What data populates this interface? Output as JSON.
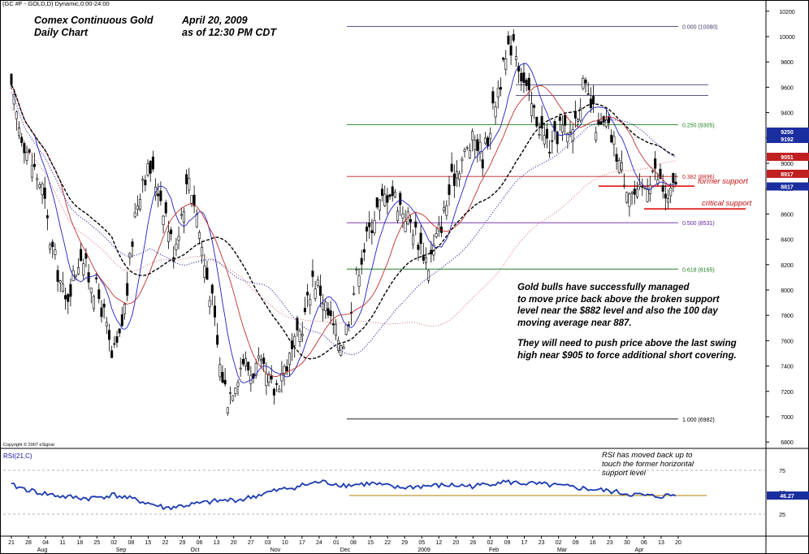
{
  "header": {
    "symbol_line": "(GC #F - GOLD,D) Dynamic,0:00-24:00",
    "title_left_1": "Comex Continuous Gold",
    "title_left_2": "Daily Chart",
    "title_right_1": "April 20, 2009",
    "title_right_2": "as of  12:30 PM CDT"
  },
  "copyright": "Copyright © 2007 eSignal",
  "annotations": {
    "main_note": [
      "Gold bulls have successfully managed",
      "to move price back above the broken support",
      "level near the $882 level and also the 100 day",
      "moving average near 887.",
      "",
      "They will need to push price above the last swing",
      "high near $905 to force additional short covering."
    ],
    "rsi_note": [
      "RSI has moved back up to",
      "touch the former horizontal",
      "support level"
    ],
    "former_support": "former support",
    "critical_support": "critical support"
  },
  "colors": {
    "price": "#000000",
    "ma_blue": "#2020c0",
    "ma_red": "#c03030",
    "ma_black_dashed": "#000000",
    "ma_dotted_red": "#d06060",
    "ma_dotted_blue": "#2020a0",
    "fib_top": "#404070",
    "fib_250": "#208020",
    "fib_382": "#c02020",
    "fib_500": "#6020a0",
    "fib_618": "#208020",
    "fib_100": "#000000",
    "support_line": "#e00000",
    "rsi_line": "#1a3ab0",
    "rsi_level": "#b08000",
    "tag_blue_bg": "#1a2ea0",
    "tag_red_bg": "#c02020"
  },
  "chart_data": [
    {
      "type": "candlestick",
      "title": "",
      "y_axis_ticks": [
        "10200",
        "10000",
        "9800",
        "9600",
        "9400",
        "9200",
        "9000",
        "8800",
        "8600",
        "8400",
        "8200",
        "8000",
        "7800",
        "7600",
        "7400",
        "7200",
        "7000",
        "6800"
      ],
      "ylim": [
        675,
        1025
      ],
      "x_day_labels": [
        "21",
        "28",
        "04",
        "11",
        "18",
        "25",
        "02",
        "08",
        "15",
        "22",
        "29",
        "06",
        "13",
        "20",
        "27",
        "03",
        "10",
        "17",
        "24",
        "01",
        "08",
        "15",
        "22",
        "29",
        "05",
        "12",
        "20",
        "26",
        "02",
        "09",
        "17",
        "23",
        "02",
        "09",
        "16",
        "23",
        "30",
        "06",
        "13",
        "20"
      ],
      "x_month_labels": [
        "Aug",
        "Sep",
        "Oct",
        "Nov",
        "Dec",
        "2009",
        "Feb",
        "Mar",
        "Apr"
      ],
      "fibonacci_levels": [
        {
          "label": "0.000 (10080)",
          "value": 1008.0
        },
        {
          "label": "0.250 (9305)",
          "value": 930.5
        },
        {
          "label": "0.382 (8896)",
          "value": 889.6
        },
        {
          "label": "0.500 (8531)",
          "value": 853.1
        },
        {
          "label": "0.618 (8165)",
          "value": 816.5
        },
        {
          "label": "1.000 (6982)",
          "value": 698.2
        }
      ],
      "horizontal_lines": [
        {
          "value": 962,
          "color": "#404070"
        },
        {
          "value": 953.5,
          "color": "#404070"
        }
      ],
      "support_lines": [
        {
          "label": "former support",
          "value": 882
        },
        {
          "label": "critical support",
          "value": 864
        }
      ],
      "price_tags": [
        {
          "label": "9250",
          "value": 925,
          "color": "blue"
        },
        {
          "label": "9192",
          "value": 919.2,
          "color": "blue"
        },
        {
          "label": "9051",
          "value": 905.1,
          "color": "red"
        },
        {
          "label": "8917",
          "value": 891.7,
          "color": "red"
        },
        {
          "label": "8817",
          "value": 881.7,
          "color": "blue"
        }
      ],
      "close_path": [
        {
          "d": 0,
          "v": 955
        },
        {
          "d": 3,
          "v": 930
        },
        {
          "d": 6,
          "v": 910
        },
        {
          "d": 9,
          "v": 895
        },
        {
          "d": 12,
          "v": 880
        },
        {
          "d": 15,
          "v": 840
        },
        {
          "d": 18,
          "v": 815
        },
        {
          "d": 21,
          "v": 790
        },
        {
          "d": 24,
          "v": 810
        },
        {
          "d": 27,
          "v": 830
        },
        {
          "d": 30,
          "v": 810
        },
        {
          "d": 33,
          "v": 800
        },
        {
          "d": 36,
          "v": 780
        },
        {
          "d": 39,
          "v": 745
        },
        {
          "d": 42,
          "v": 760
        },
        {
          "d": 45,
          "v": 800
        },
        {
          "d": 48,
          "v": 860
        },
        {
          "d": 51,
          "v": 890
        },
        {
          "d": 54,
          "v": 895
        },
        {
          "d": 57,
          "v": 880
        },
        {
          "d": 60,
          "v": 860
        },
        {
          "d": 63,
          "v": 830
        },
        {
          "d": 66,
          "v": 860
        },
        {
          "d": 69,
          "v": 890
        },
        {
          "d": 72,
          "v": 860
        },
        {
          "d": 75,
          "v": 820
        },
        {
          "d": 78,
          "v": 790
        },
        {
          "d": 81,
          "v": 740
        },
        {
          "d": 84,
          "v": 715
        },
        {
          "d": 87,
          "v": 730
        },
        {
          "d": 90,
          "v": 745
        },
        {
          "d": 93,
          "v": 735
        },
        {
          "d": 96,
          "v": 740
        },
        {
          "d": 99,
          "v": 730
        },
        {
          "d": 102,
          "v": 720
        },
        {
          "d": 105,
          "v": 735
        },
        {
          "d": 108,
          "v": 745
        },
        {
          "d": 111,
          "v": 760
        },
        {
          "d": 114,
          "v": 780
        },
        {
          "d": 117,
          "v": 810
        },
        {
          "d": 120,
          "v": 800
        },
        {
          "d": 123,
          "v": 780
        },
        {
          "d": 126,
          "v": 765
        },
        {
          "d": 129,
          "v": 760
        },
        {
          "d": 132,
          "v": 790
        },
        {
          "d": 135,
          "v": 820
        },
        {
          "d": 138,
          "v": 840
        },
        {
          "d": 141,
          "v": 860
        },
        {
          "d": 144,
          "v": 870
        },
        {
          "d": 147,
          "v": 880
        },
        {
          "d": 150,
          "v": 870
        },
        {
          "d": 153,
          "v": 860
        },
        {
          "d": 156,
          "v": 850
        },
        {
          "d": 159,
          "v": 835
        },
        {
          "d": 162,
          "v": 820
        },
        {
          "d": 165,
          "v": 840
        },
        {
          "d": 168,
          "v": 860
        },
        {
          "d": 171,
          "v": 885
        },
        {
          "d": 174,
          "v": 900
        },
        {
          "d": 177,
          "v": 910
        },
        {
          "d": 180,
          "v": 920
        },
        {
          "d": 183,
          "v": 905
        },
        {
          "d": 186,
          "v": 930
        },
        {
          "d": 189,
          "v": 960
        },
        {
          "d": 192,
          "v": 980
        },
        {
          "d": 195,
          "v": 1000
        },
        {
          "d": 198,
          "v": 970
        },
        {
          "d": 201,
          "v": 950
        },
        {
          "d": 204,
          "v": 935
        },
        {
          "d": 207,
          "v": 920
        },
        {
          "d": 210,
          "v": 910
        },
        {
          "d": 213,
          "v": 930
        },
        {
          "d": 216,
          "v": 920
        },
        {
          "d": 219,
          "v": 935
        },
        {
          "d": 222,
          "v": 960
        },
        {
          "d": 225,
          "v": 945
        },
        {
          "d": 228,
          "v": 925
        },
        {
          "d": 231,
          "v": 930
        },
        {
          "d": 234,
          "v": 915
        },
        {
          "d": 237,
          "v": 895
        },
        {
          "d": 240,
          "v": 880
        },
        {
          "d": 243,
          "v": 872
        },
        {
          "d": 246,
          "v": 882
        },
        {
          "d": 249,
          "v": 895
        },
        {
          "d": 252,
          "v": 885
        },
        {
          "d": 255,
          "v": 868
        },
        {
          "d": 258,
          "v": 887
        }
      ],
      "rsi": {
        "label": "RSI(21,C)",
        "levels": [
          25,
          50,
          75
        ],
        "ylim": [
          0,
          100
        ],
        "reference_level": 46.27,
        "last_value_label": "46.27",
        "values": [
          {
            "d": 0,
            "v": 58
          },
          {
            "d": 10,
            "v": 50
          },
          {
            "d": 20,
            "v": 45
          },
          {
            "d": 30,
            "v": 43
          },
          {
            "d": 40,
            "v": 47
          },
          {
            "d": 50,
            "v": 40
          },
          {
            "d": 60,
            "v": 32
          },
          {
            "d": 70,
            "v": 36
          },
          {
            "d": 80,
            "v": 40
          },
          {
            "d": 90,
            "v": 42
          },
          {
            "d": 100,
            "v": 50
          },
          {
            "d": 110,
            "v": 56
          },
          {
            "d": 120,
            "v": 62
          },
          {
            "d": 130,
            "v": 58
          },
          {
            "d": 140,
            "v": 60
          },
          {
            "d": 150,
            "v": 55
          },
          {
            "d": 160,
            "v": 57
          },
          {
            "d": 170,
            "v": 58
          },
          {
            "d": 180,
            "v": 57
          },
          {
            "d": 190,
            "v": 62
          },
          {
            "d": 200,
            "v": 60
          },
          {
            "d": 210,
            "v": 58
          },
          {
            "d": 220,
            "v": 55
          },
          {
            "d": 230,
            "v": 52
          },
          {
            "d": 240,
            "v": 48
          },
          {
            "d": 250,
            "v": 45
          },
          {
            "d": 258,
            "v": 47
          }
        ]
      }
    }
  ]
}
